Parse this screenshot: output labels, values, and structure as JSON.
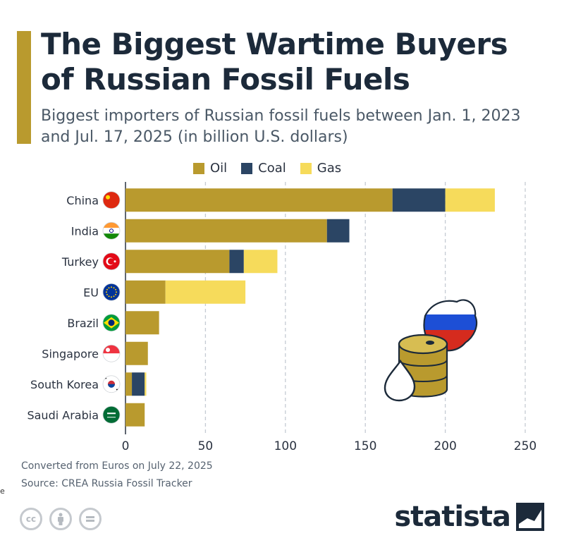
{
  "header": {
    "title": "The Biggest Wartime Buyers of Russian Fossil Fuels",
    "subtitle": "Biggest importers of Russian fossil fuels between Jan. 1, 2023 and Jul. 17, 2025 (in billion U.S. dollars)"
  },
  "colors": {
    "accent": "#b99a2e",
    "oil": "#b99a2e",
    "coal": "#2b4564",
    "gas": "#f6db5b",
    "text_dark": "#1c2a3a",
    "grid": "#c5cbd3"
  },
  "chart_data": {
    "type": "bar",
    "orientation": "horizontal",
    "stacked": true,
    "title": "The Biggest Wartime Buyers of Russian Fossil Fuels",
    "subtitle": "Biggest importers of Russian fossil fuels between Jan. 1, 2023 and Jul. 17, 2025 (in billion U.S. dollars)",
    "categories": [
      "China",
      "India",
      "Turkey",
      "EU",
      "Brazil",
      "Singapore",
      "South Korea",
      "Saudi Arabia"
    ],
    "flag_icons": [
      "china-flag-icon",
      "india-flag-icon",
      "turkey-flag-icon",
      "eu-flag-icon",
      "brazil-flag-icon",
      "singapore-flag-icon",
      "south-korea-flag-icon",
      "saudi-arabia-flag-icon"
    ],
    "series": [
      {
        "name": "Oil",
        "values": [
          167,
          126,
          65,
          25,
          21,
          14,
          4,
          12
        ]
      },
      {
        "name": "Coal",
        "values": [
          33,
          14,
          9,
          0,
          0,
          0,
          8,
          0
        ]
      },
      {
        "name": "Gas",
        "values": [
          31,
          0,
          21,
          50,
          0,
          0,
          1,
          0
        ]
      }
    ],
    "xlim": [
      0,
      250
    ],
    "xticks": [
      "0",
      "50",
      "100",
      "150",
      "200",
      "250"
    ],
    "grid": true,
    "legend_position": "top"
  },
  "legend": [
    {
      "label": "Oil"
    },
    {
      "label": "Coal"
    },
    {
      "label": "Gas"
    }
  ],
  "footer": {
    "note": "Converted from Euros on July 22, 2025",
    "source": "Source: CREA Russia Fossil Tracker",
    "stray_char": "e",
    "brand": "statista"
  },
  "illustration": {
    "icons": [
      "oil-barrel-icon",
      "oil-drop-icon",
      "russia-map-icon"
    ]
  },
  "license_icons": [
    "cc-icon",
    "attribution-icon",
    "no-derivatives-icon"
  ]
}
